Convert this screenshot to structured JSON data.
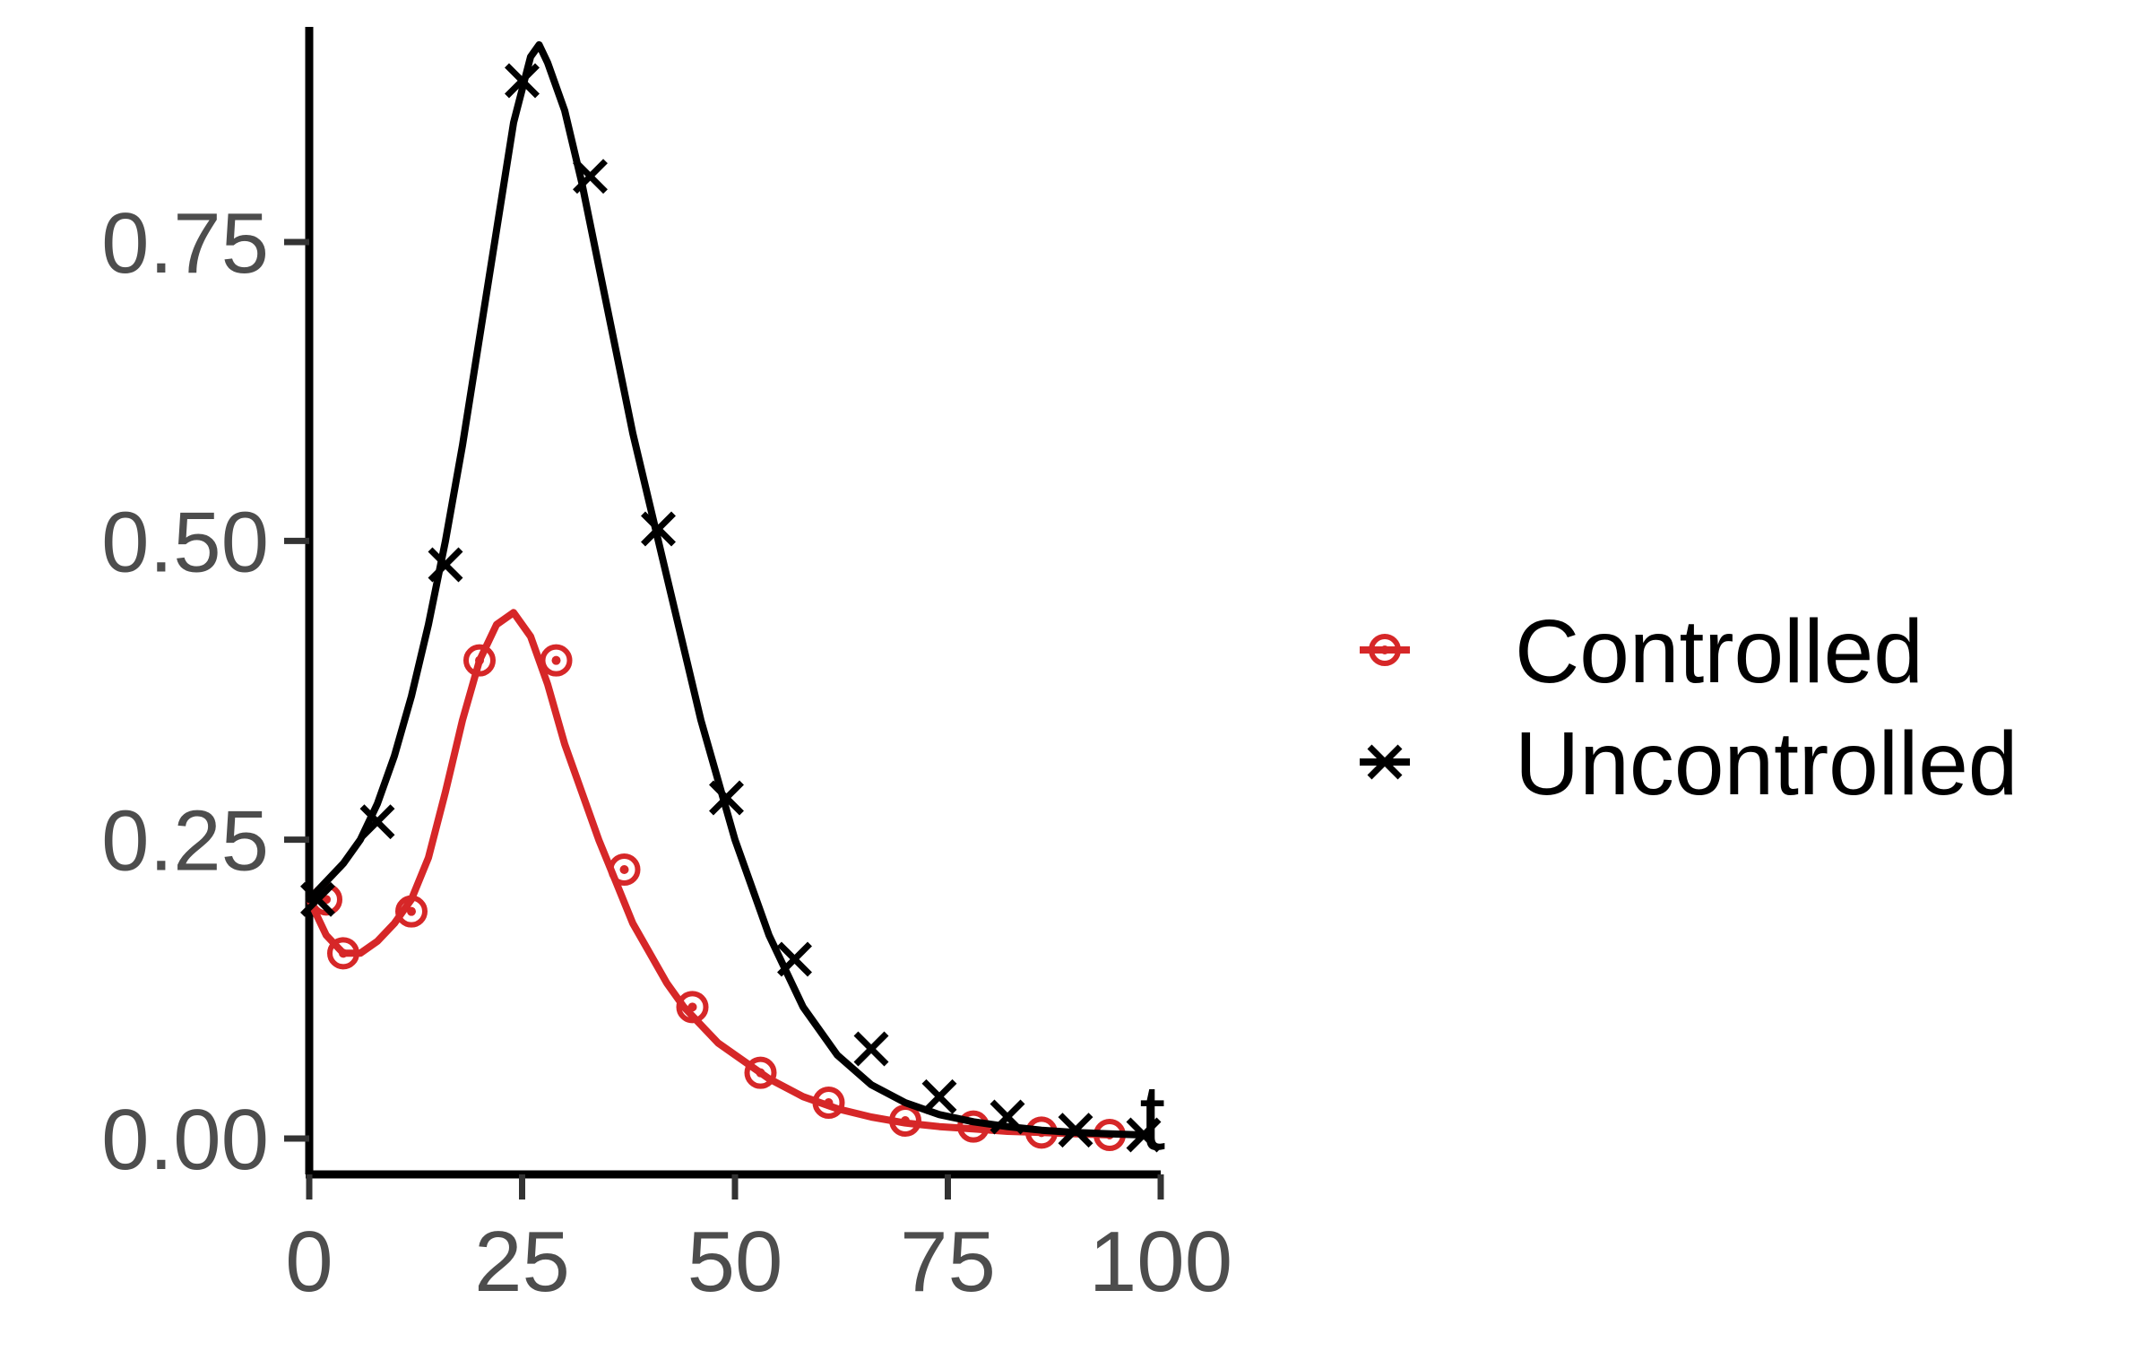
{
  "chart_data": {
    "type": "line",
    "title": "",
    "xlabel": "t",
    "ylabel": "",
    "xlim": [
      0,
      100
    ],
    "ylim": [
      -0.03,
      0.93
    ],
    "x_ticks": [
      0,
      25,
      50,
      75,
      100
    ],
    "x_tick_labels": [
      "0",
      "25",
      "50",
      "75",
      "100"
    ],
    "y_ticks": [
      0.0,
      0.25,
      0.5,
      0.75
    ],
    "y_tick_labels": [
      "0.00",
      "0.25",
      "0.50",
      "0.75"
    ],
    "grid": false,
    "legend_position": "right",
    "series": [
      {
        "name": "Controlled",
        "color": "#d62728",
        "marker": "circle",
        "line_x": [
          0,
          2,
          4,
          6,
          8,
          10,
          12,
          14,
          16,
          18,
          20,
          22,
          24,
          26,
          28,
          30,
          32,
          34,
          36,
          38,
          40,
          42,
          44,
          46,
          48,
          50,
          54,
          58,
          62,
          66,
          70,
          74,
          78,
          82,
          86,
          90,
          94
        ],
        "line_y": [
          0.2,
          0.17,
          0.155,
          0.155,
          0.165,
          0.18,
          0.2,
          0.235,
          0.29,
          0.35,
          0.4,
          0.43,
          0.44,
          0.42,
          0.38,
          0.33,
          0.29,
          0.25,
          0.215,
          0.18,
          0.155,
          0.13,
          0.11,
          0.095,
          0.08,
          0.07,
          0.05,
          0.035,
          0.025,
          0.018,
          0.013,
          0.01,
          0.008,
          0.006,
          0.005,
          0.004,
          0.003
        ],
        "marker_x": [
          2,
          4,
          12,
          20,
          29,
          37,
          45,
          53,
          61,
          70,
          78,
          86,
          94
        ],
        "marker_y": [
          0.2,
          0.155,
          0.19,
          0.4,
          0.4,
          0.225,
          0.11,
          0.055,
          0.03,
          0.015,
          0.01,
          0.005,
          0.003
        ]
      },
      {
        "name": "Uncontrolled",
        "color": "#000000",
        "marker": "x",
        "line_x": [
          0,
          2,
          4,
          6,
          8,
          10,
          12,
          14,
          16,
          18,
          20,
          22,
          24,
          26,
          27,
          28,
          30,
          32,
          34,
          36,
          38,
          40,
          42,
          44,
          46,
          48,
          50,
          54,
          58,
          62,
          66,
          70,
          74,
          78,
          82,
          86,
          90,
          94,
          98
        ],
        "line_y": [
          0.2,
          0.215,
          0.23,
          0.25,
          0.28,
          0.32,
          0.37,
          0.43,
          0.5,
          0.58,
          0.67,
          0.76,
          0.85,
          0.905,
          0.915,
          0.9,
          0.86,
          0.8,
          0.73,
          0.66,
          0.59,
          0.53,
          0.47,
          0.41,
          0.35,
          0.3,
          0.25,
          0.17,
          0.11,
          0.07,
          0.045,
          0.03,
          0.02,
          0.014,
          0.01,
          0.007,
          0.005,
          0.004,
          0.003
        ],
        "marker_x": [
          1,
          8,
          16,
          25,
          33,
          41,
          49,
          57,
          66,
          74,
          82,
          90,
          98
        ],
        "marker_y": [
          0.2,
          0.265,
          0.48,
          0.885,
          0.805,
          0.51,
          0.285,
          0.15,
          0.075,
          0.035,
          0.018,
          0.007,
          0.003
        ]
      }
    ]
  }
}
